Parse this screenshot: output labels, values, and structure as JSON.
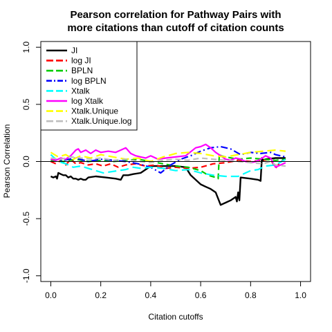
{
  "chart_data": {
    "type": "line",
    "title_lines": [
      "Pearson correlation for Pathway Pairs with",
      "more citations than cutoff of citation counts"
    ],
    "xlabel": "Citation cutoffs",
    "ylabel": "Pearson Correlation",
    "xlim": [
      -0.04,
      1.04
    ],
    "ylim": [
      -1.05,
      1.05
    ],
    "xticks": [
      0.0,
      0.2,
      0.4,
      0.6,
      0.8,
      1.0
    ],
    "xtick_labels": [
      "0.0",
      "0.2",
      "0.4",
      "0.6",
      "0.8",
      "1.0"
    ],
    "yticks": [
      -1.0,
      -0.5,
      0.0,
      0.5,
      1.0
    ],
    "ytick_labels": [
      "-1.0",
      "-0.5",
      "0.0",
      "0.5",
      "1.0"
    ],
    "hline": 0,
    "legend_position": "top-left",
    "series": [
      {
        "name": "JI",
        "color": "#000000",
        "dash": "solid",
        "x": [
          0.0,
          0.01,
          0.02,
          0.025,
          0.03,
          0.04,
          0.05,
          0.06,
          0.07,
          0.08,
          0.09,
          0.1,
          0.11,
          0.12,
          0.13,
          0.14,
          0.15,
          0.18,
          0.22,
          0.26,
          0.28,
          0.29,
          0.31,
          0.33,
          0.36,
          0.4,
          0.45,
          0.5,
          0.54,
          0.56,
          0.58,
          0.6,
          0.62,
          0.64,
          0.66,
          0.68,
          0.7,
          0.72,
          0.74,
          0.745,
          0.75,
          0.755,
          0.76,
          0.8,
          0.83,
          0.84,
          0.845,
          0.85,
          0.86,
          0.9,
          0.94
        ],
        "y": [
          -0.13,
          -0.14,
          -0.13,
          -0.15,
          -0.1,
          -0.11,
          -0.12,
          -0.12,
          -0.14,
          -0.13,
          -0.15,
          -0.15,
          -0.16,
          -0.15,
          -0.16,
          -0.16,
          -0.14,
          -0.13,
          -0.14,
          -0.15,
          -0.16,
          -0.12,
          -0.12,
          -0.11,
          -0.1,
          -0.04,
          -0.04,
          -0.04,
          -0.05,
          -0.12,
          -0.16,
          -0.2,
          -0.22,
          -0.24,
          -0.27,
          -0.38,
          -0.36,
          -0.34,
          -0.31,
          -0.35,
          -0.27,
          -0.34,
          -0.14,
          -0.15,
          -0.16,
          -0.17,
          0.03,
          0.01,
          0.02,
          0.03,
          0.03
        ]
      },
      {
        "name": "log JI",
        "color": "#ff0000",
        "dash": "dash",
        "x": [
          0.0,
          0.02,
          0.04,
          0.06,
          0.08,
          0.1,
          0.12,
          0.15,
          0.18,
          0.21,
          0.24,
          0.27,
          0.3,
          0.34,
          0.38,
          0.42,
          0.46,
          0.5,
          0.55,
          0.6,
          0.65,
          0.7,
          0.75,
          0.8,
          0.85,
          0.88,
          0.9,
          0.92,
          0.94
        ],
        "y": [
          0.0,
          -0.02,
          0.01,
          -0.03,
          0.02,
          -0.02,
          -0.01,
          -0.03,
          -0.02,
          -0.04,
          -0.02,
          -0.05,
          -0.03,
          -0.02,
          -0.04,
          -0.03,
          -0.06,
          -0.05,
          -0.06,
          -0.05,
          -0.02,
          -0.01,
          0.01,
          0.0,
          0.01,
          0.02,
          -0.06,
          0.0,
          0.02
        ]
      },
      {
        "name": "BPLN",
        "color": "#00cc00",
        "dash": "dash",
        "x": [
          0.0,
          0.05,
          0.1,
          0.15,
          0.2,
          0.25,
          0.3,
          0.35,
          0.4,
          0.45,
          0.5,
          0.55,
          0.6,
          0.63,
          0.66,
          0.67,
          0.675,
          0.68,
          0.7,
          0.75,
          0.8,
          0.85,
          0.9,
          0.94
        ],
        "y": [
          0.01,
          0.0,
          0.02,
          0.0,
          0.01,
          0.0,
          0.01,
          0.02,
          0.0,
          -0.02,
          -0.04,
          -0.05,
          -0.08,
          -0.12,
          -0.14,
          -0.15,
          0.07,
          0.05,
          0.04,
          0.02,
          0.03,
          0.02,
          0.01,
          0.02
        ]
      },
      {
        "name": "log BPLN",
        "color": "#0000ff",
        "dash": "dashdot",
        "x": [
          0.0,
          0.05,
          0.1,
          0.15,
          0.2,
          0.25,
          0.3,
          0.35,
          0.4,
          0.44,
          0.48,
          0.52,
          0.56,
          0.6,
          0.64,
          0.68,
          0.72,
          0.76,
          0.8,
          0.84,
          0.88,
          0.9,
          0.94
        ],
        "y": [
          0.02,
          0.01,
          0.03,
          0.0,
          0.02,
          0.01,
          0.0,
          -0.02,
          -0.05,
          -0.1,
          -0.03,
          0.02,
          0.05,
          0.09,
          0.12,
          0.13,
          0.11,
          0.06,
          0.08,
          0.07,
          0.08,
          0.06,
          0.04
        ]
      },
      {
        "name": "Xtalk",
        "color": "#00ffff",
        "dash": "longdash",
        "x": [
          0.0,
          0.03,
          0.06,
          0.09,
          0.12,
          0.15,
          0.18,
          0.21,
          0.24,
          0.27,
          0.3,
          0.33,
          0.36,
          0.4,
          0.45,
          0.5,
          0.55,
          0.6,
          0.65,
          0.7,
          0.75,
          0.78,
          0.8,
          0.83,
          0.86,
          0.9,
          0.94
        ],
        "y": [
          0.06,
          0.0,
          -0.02,
          -0.05,
          -0.04,
          -0.06,
          -0.08,
          -0.1,
          -0.09,
          -0.08,
          -0.07,
          -0.05,
          -0.06,
          -0.05,
          -0.06,
          -0.08,
          -0.07,
          -0.1,
          -0.12,
          -0.13,
          -0.13,
          -0.1,
          -0.08,
          -0.07,
          -0.04,
          -0.03,
          0.02
        ]
      },
      {
        "name": "log Xtalk",
        "color": "#ff00ff",
        "dash": "solid",
        "x": [
          0.0,
          0.02,
          0.04,
          0.06,
          0.08,
          0.1,
          0.11,
          0.12,
          0.14,
          0.16,
          0.18,
          0.2,
          0.23,
          0.26,
          0.28,
          0.3,
          0.32,
          0.34,
          0.36,
          0.38,
          0.4,
          0.43,
          0.46,
          0.5,
          0.54,
          0.58,
          0.6,
          0.62,
          0.64,
          0.66,
          0.68,
          0.7,
          0.72,
          0.74,
          0.76,
          0.78,
          0.8,
          0.82,
          0.84,
          0.86,
          0.88,
          0.9,
          0.92,
          0.94
        ],
        "y": [
          0.02,
          0.01,
          0.03,
          0.02,
          0.05,
          0.1,
          0.11,
          0.08,
          0.1,
          0.07,
          0.1,
          0.08,
          0.09,
          0.08,
          0.1,
          0.12,
          0.07,
          0.05,
          0.04,
          0.03,
          0.05,
          0.02,
          0.03,
          0.04,
          0.05,
          0.12,
          0.13,
          0.15,
          0.12,
          0.08,
          0.05,
          0.02,
          0.01,
          0.03,
          0.02,
          0.0,
          -0.01,
          0.0,
          0.02,
          0.05,
          0.03,
          -0.05,
          -0.03,
          -0.01
        ]
      },
      {
        "name": "Xtalk.Unique",
        "color": "#ffff00",
        "dash": "longdash",
        "x": [
          0.0,
          0.03,
          0.06,
          0.09,
          0.12,
          0.16,
          0.2,
          0.25,
          0.3,
          0.35,
          0.4,
          0.45,
          0.5,
          0.55,
          0.6,
          0.65,
          0.7,
          0.75,
          0.8,
          0.85,
          0.9,
          0.94
        ],
        "y": [
          0.08,
          0.04,
          0.06,
          0.02,
          0.05,
          0.03,
          0.06,
          0.04,
          0.02,
          0.03,
          0.0,
          0.04,
          0.07,
          0.08,
          0.07,
          0.05,
          0.04,
          0.06,
          0.08,
          0.09,
          0.1,
          0.09
        ]
      },
      {
        "name": "Xtalk.Unique.log",
        "color": "#bebebe",
        "dash": "dash",
        "x": [
          0.0,
          0.04,
          0.08,
          0.12,
          0.16,
          0.2,
          0.25,
          0.3,
          0.35,
          0.4,
          0.45,
          0.5,
          0.55,
          0.6,
          0.65,
          0.7,
          0.75,
          0.8,
          0.85,
          0.88,
          0.9,
          0.94
        ],
        "y": [
          0.03,
          0.02,
          0.04,
          0.03,
          0.02,
          0.03,
          0.01,
          0.02,
          0.0,
          -0.01,
          0.01,
          0.02,
          0.01,
          0.03,
          0.02,
          0.01,
          0.0,
          -0.01,
          -0.02,
          0.0,
          -0.03,
          -0.04
        ]
      }
    ]
  }
}
